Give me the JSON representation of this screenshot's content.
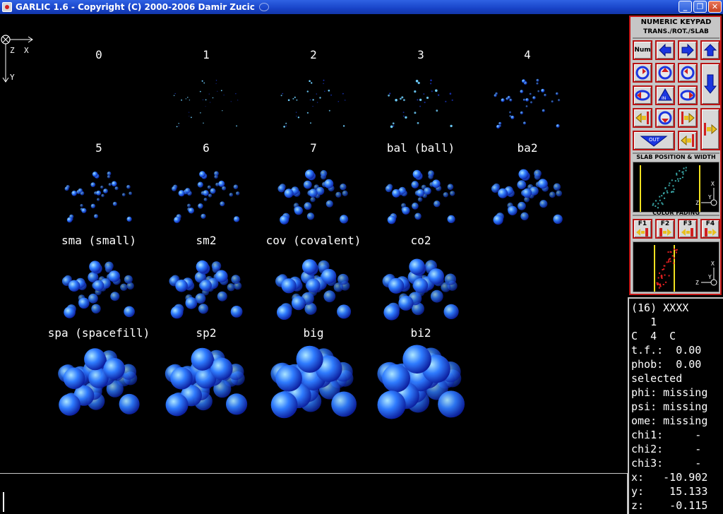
{
  "window": {
    "title": "GARLIC 1.6 - Copyright (C) 2000-2006 Damir Zucic",
    "minimize_label": "_",
    "maximize_label": "❐",
    "close_label": "✕"
  },
  "axis": {
    "x": "X",
    "y": "Y",
    "z": "Z"
  },
  "viewer": {
    "labels": [
      "0",
      "1",
      "2",
      "3",
      "4",
      "5",
      "6",
      "7",
      "bal (ball)",
      "ba2",
      "sma (small)",
      "sm2",
      "cov (covalent)",
      "co2",
      "spa (spacefill)",
      "sp2",
      "big",
      "bi2"
    ]
  },
  "keypad": {
    "title": "NUMERIC KEYPAD",
    "subtitle": "TRANS./ROT./SLAB",
    "num_label": "Num",
    "out_label": "OUT",
    "in_label": "IN",
    "slab_title": "SLAB POSITION & WIDTH",
    "fading_title": "COLOR FADING",
    "fkeys": [
      "F1",
      "F2",
      "F3",
      "F4"
    ],
    "axis_x": "X",
    "axis_y": "Y",
    "axis_z": "Z"
  },
  "info": {
    "line1": "(16) XXXX",
    "line2": "   1",
    "line3": "C  4  C",
    "line4": "t.f.:  0.00",
    "line5": "phob:  0.00",
    "line6": "selected",
    "line7": "phi: missing",
    "line8": "psi: missing",
    "line9": "ome: missing",
    "line10": "chi1:     -",
    "line11": "chi2:     -",
    "line12": "chi3:     -",
    "line13": "x:   -10.902",
    "line14": "y:    15.133",
    "line15": "z:    -0.115"
  },
  "colors": {
    "background": "#000000",
    "titlebar": "#1f4fd0",
    "keypad_border": "#c81818",
    "atom_dark": "#0a1a9a",
    "atom_light": "#7ad8ff"
  }
}
